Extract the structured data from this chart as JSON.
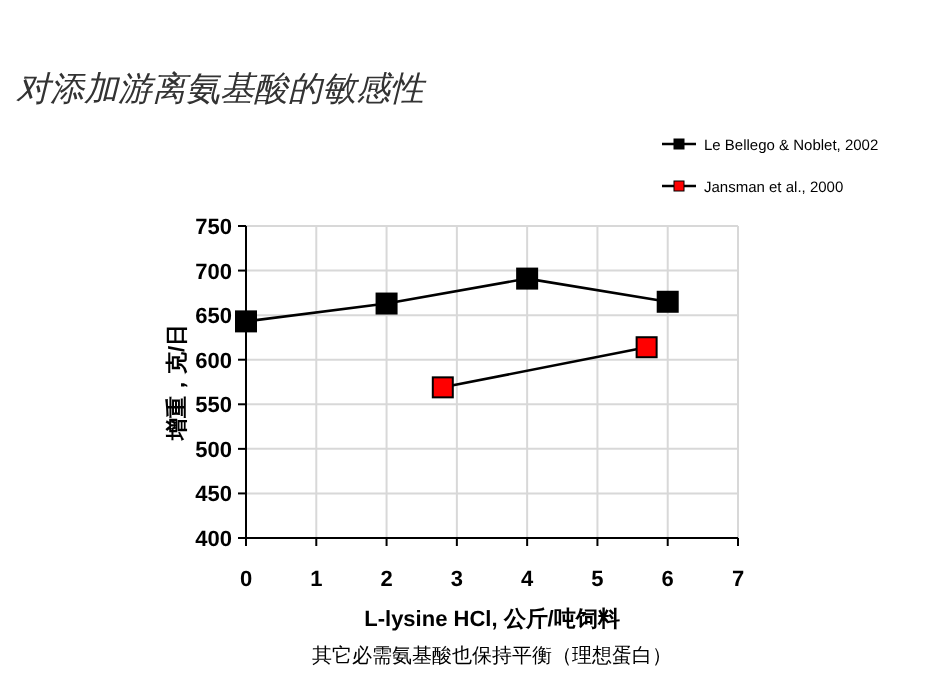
{
  "chart_data": {
    "type": "line",
    "title": "对添加游离氨基酸的敏感性",
    "xlabel": "L-lysine HCl, 公斤/吨饲料",
    "ylabel": "增重，克/日",
    "annotations": [
      "其它必需氨基酸也保持平衡（理想蛋白）"
    ],
    "series": [
      {
        "name": "Le Bellego & Noblet, 2002",
        "color": "#000000",
        "x": [
          0,
          2,
          4,
          6
        ],
        "values": [
          643,
          663,
          691,
          665
        ]
      },
      {
        "name": "Jansman et al., 2000",
        "color": "#ff0000",
        "x": [
          2.8,
          5.7
        ],
        "values": [
          569,
          614
        ]
      }
    ],
    "xlim": [
      0,
      7
    ],
    "xticks": [
      0,
      1,
      2,
      3,
      4,
      5,
      6,
      7
    ],
    "ylim": [
      400,
      750
    ],
    "yticks": [
      400,
      450,
      500,
      550,
      600,
      650,
      700,
      750
    ],
    "grid": true,
    "legend": "top right",
    "marker": "square",
    "line_style": "solid"
  }
}
